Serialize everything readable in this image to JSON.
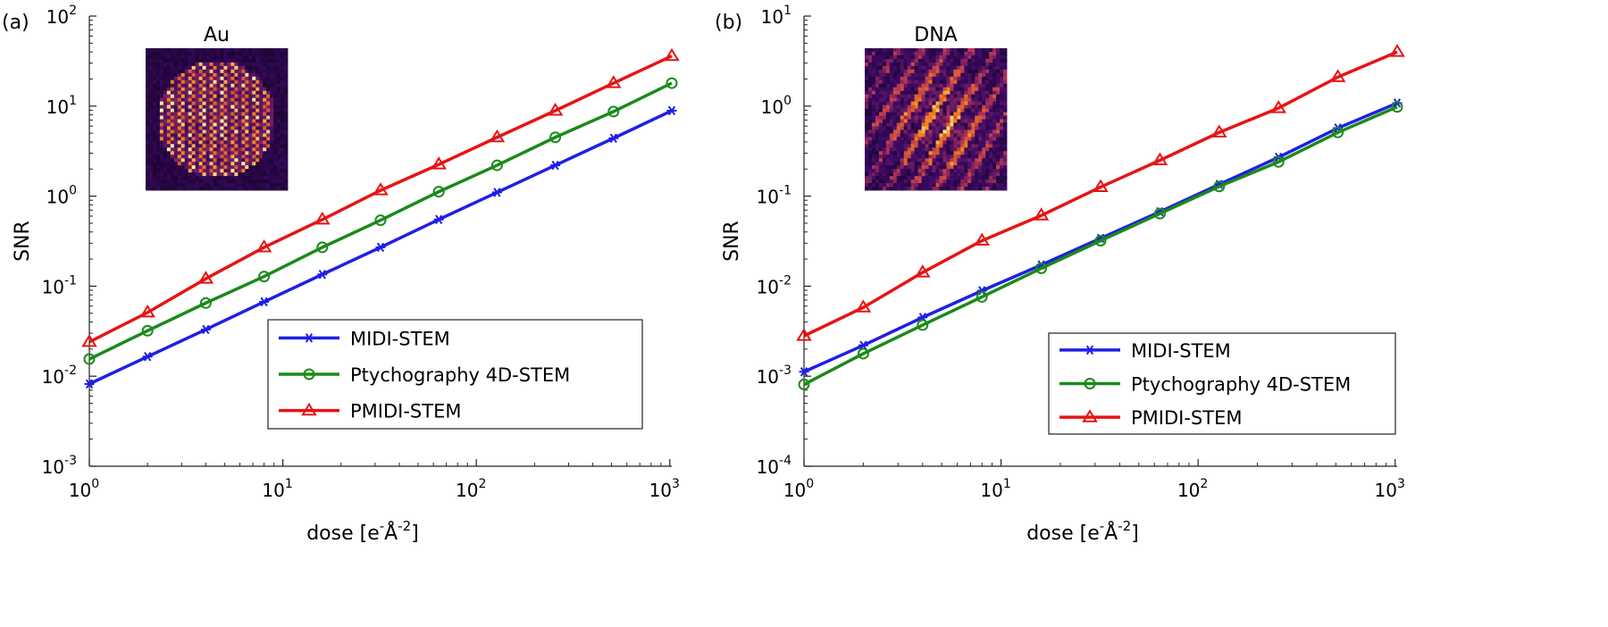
{
  "chart_data": [
    {
      "panel_label": "(a)",
      "type": "line",
      "xscale": "log",
      "yscale": "log",
      "xlim": [
        1,
        1024
      ],
      "ylim": [
        0.001,
        100
      ],
      "x_ticks": [
        "10",
        "10",
        "10",
        "10"
      ],
      "x_tick_exps": [
        "0",
        "1",
        "2",
        "3"
      ],
      "y_ticks": [
        "10",
        "10",
        "10",
        "10",
        "10",
        "10"
      ],
      "y_tick_exps": [
        "-3",
        "-2",
        "-1",
        "0",
        "1",
        "2"
      ],
      "xlabel_base": "dose [e",
      "xlabel_sup1": "-",
      "xlabel_mid": "Å",
      "xlabel_sup2": "-2",
      "xlabel_end": "]",
      "ylabel": "SNR",
      "inset_title": "Au",
      "legend_position": "lower-right",
      "x": [
        1,
        2,
        4,
        8,
        16,
        32,
        64,
        128,
        256,
        512,
        1024
      ],
      "series": [
        {
          "name": "MIDI-STEM",
          "color": "#1f1fe6",
          "marker": "asterisk",
          "values": [
            0.0082,
            0.0165,
            0.033,
            0.067,
            0.135,
            0.27,
            0.55,
            1.1,
            2.2,
            4.4,
            8.9
          ]
        },
        {
          "name": "Ptychography 4D-STEM",
          "color": "#1a8a1a",
          "marker": "circle",
          "values": [
            0.0155,
            0.032,
            0.065,
            0.128,
            0.27,
            0.54,
            1.12,
            2.2,
            4.5,
            8.7,
            18.0
          ]
        },
        {
          "name": "PMIDI-STEM",
          "color": "#e61414",
          "marker": "triangle",
          "values": [
            0.024,
            0.051,
            0.121,
            0.27,
            0.55,
            1.16,
            2.25,
            4.5,
            8.9,
            18.0,
            36.0
          ]
        }
      ]
    },
    {
      "panel_label": "(b)",
      "type": "line",
      "xscale": "log",
      "yscale": "log",
      "xlim": [
        1,
        1024
      ],
      "ylim": [
        0.0001,
        10
      ],
      "x_ticks": [
        "10",
        "10",
        "10",
        "10"
      ],
      "x_tick_exps": [
        "0",
        "1",
        "2",
        "3"
      ],
      "y_ticks": [
        "10",
        "10",
        "10",
        "10",
        "10",
        "10"
      ],
      "y_tick_exps": [
        "-4",
        "-3",
        "-2",
        "-1",
        "0",
        "1"
      ],
      "xlabel_base": "dose [e",
      "xlabel_sup1": "-",
      "xlabel_mid": "Å",
      "xlabel_sup2": "-2",
      "xlabel_end": "]",
      "ylabel": "SNR",
      "inset_title": "DNA",
      "legend_position": "lower-right",
      "x": [
        1,
        2,
        4,
        8,
        16,
        32,
        64,
        128,
        256,
        512,
        1024
      ],
      "series": [
        {
          "name": "MIDI-STEM",
          "color": "#1f1fe6",
          "marker": "asterisk",
          "values": [
            0.00112,
            0.0022,
            0.0045,
            0.0089,
            0.0172,
            0.034,
            0.067,
            0.135,
            0.27,
            0.57,
            1.08
          ]
        },
        {
          "name": "Ptychography 4D-STEM",
          "color": "#1a8a1a",
          "marker": "circle",
          "values": [
            0.00081,
            0.00178,
            0.0037,
            0.0076,
            0.0158,
            0.032,
            0.064,
            0.128,
            0.24,
            0.51,
            0.98
          ]
        },
        {
          "name": "PMIDI-STEM",
          "color": "#e61414",
          "marker": "triangle",
          "values": [
            0.0028,
            0.0058,
            0.0142,
            0.032,
            0.061,
            0.126,
            0.25,
            0.51,
            0.95,
            2.1,
            4.0
          ]
        }
      ]
    }
  ]
}
